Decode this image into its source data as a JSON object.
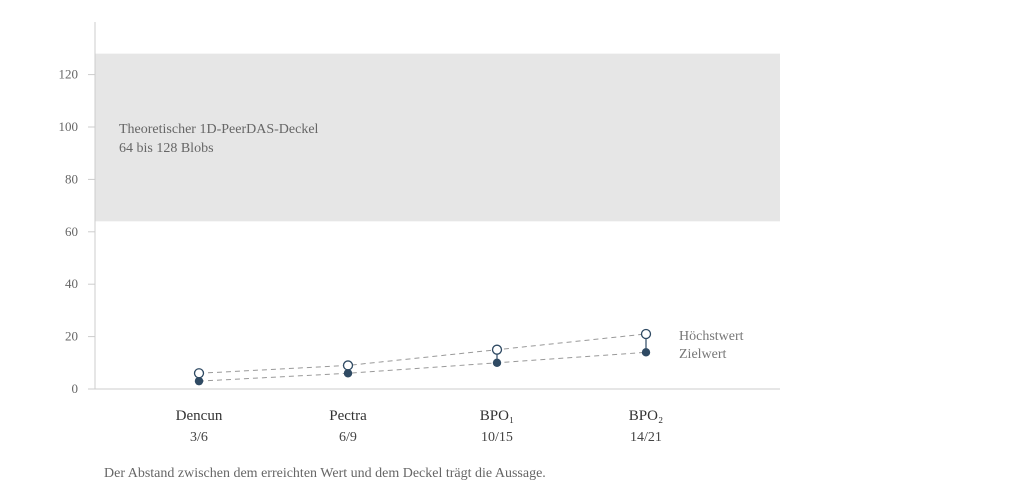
{
  "chart_data": {
    "type": "line",
    "title": "",
    "xlabel": "",
    "ylabel": "",
    "categories": [
      "Dencun",
      "Pectra",
      "BPO₁",
      "BPO₂"
    ],
    "category_sublabels": [
      "3/6",
      "6/9",
      "10/15",
      "14/21"
    ],
    "ylim": [
      0,
      130
    ],
    "yticks": [
      0,
      20,
      40,
      60,
      80,
      100,
      120
    ],
    "grid": false,
    "series": [
      {
        "name": "Höchstwert",
        "values": [
          6,
          9,
          15,
          21
        ],
        "marker": "open-circle",
        "color": "#2f4a63"
      },
      {
        "name": "Zielwert",
        "values": [
          3,
          6,
          10,
          14
        ],
        "marker": "filled-circle",
        "color": "#2f4a63"
      }
    ],
    "band": {
      "from": 64,
      "to": 128,
      "label_line1": "Theoretischer 1D-PeerDAS-Deckel",
      "label_line2": "64 bis 128 Blobs",
      "color": "#e6e6e6"
    }
  },
  "caption": "Der Abstand zwischen dem erreichten Wert und dem Deckel trägt die Aussage."
}
